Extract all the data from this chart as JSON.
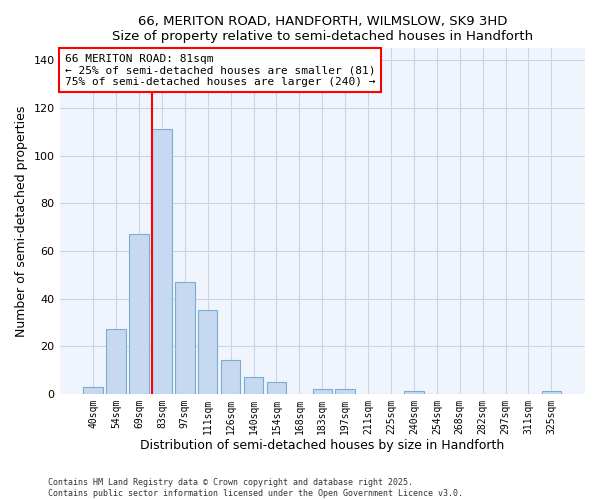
{
  "title": "66, MERITON ROAD, HANDFORTH, WILMSLOW, SK9 3HD",
  "subtitle": "Size of property relative to semi-detached houses in Handforth",
  "xlabel": "Distribution of semi-detached houses by size in Handforth",
  "ylabel": "Number of semi-detached properties",
  "bar_labels": [
    "40sqm",
    "54sqm",
    "69sqm",
    "83sqm",
    "97sqm",
    "111sqm",
    "126sqm",
    "140sqm",
    "154sqm",
    "168sqm",
    "183sqm",
    "197sqm",
    "211sqm",
    "225sqm",
    "240sqm",
    "254sqm",
    "268sqm",
    "282sqm",
    "297sqm",
    "311sqm",
    "325sqm"
  ],
  "bar_values": [
    3,
    27,
    67,
    111,
    47,
    35,
    14,
    7,
    5,
    0,
    2,
    2,
    0,
    0,
    1,
    0,
    0,
    0,
    0,
    0,
    1
  ],
  "bar_color": "#c6d9f0",
  "bar_edge_color": "#7aadd4",
  "ylim": [
    0,
    145
  ],
  "yticks": [
    0,
    20,
    40,
    60,
    80,
    100,
    120,
    140
  ],
  "property_label": "66 MERITON ROAD: 81sqm",
  "annotation_line1": "← 25% of semi-detached houses are smaller (81)",
  "annotation_line2": "75% of semi-detached houses are larger (240) →",
  "vline_bar_index": 3,
  "footnote1": "Contains HM Land Registry data © Crown copyright and database right 2025.",
  "footnote2": "Contains public sector information licensed under the Open Government Licence v3.0.",
  "background_color": "#f0f4fc",
  "grid_color": "#c8d4ec",
  "annotation_font": "DejaVu Sans Mono"
}
